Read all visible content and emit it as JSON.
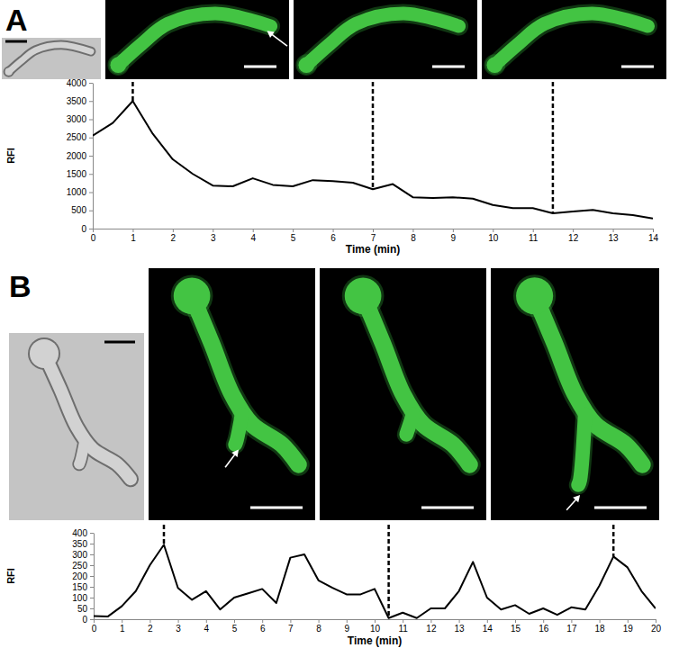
{
  "chart_data": [
    {
      "type": "line",
      "title": "A",
      "x_label": "Time (min)",
      "y_label": "RFI",
      "color": "#000000",
      "x": [
        0,
        0.5,
        1,
        1.5,
        2,
        2.5,
        3,
        3.5,
        4,
        4.5,
        5,
        5.5,
        6,
        6.5,
        7,
        7.5,
        8,
        8.5,
        9,
        9.5,
        10,
        10.5,
        11,
        11.5,
        12,
        12.5,
        13,
        13.5,
        14
      ],
      "values": [
        2550,
        2900,
        3500,
        2600,
        1900,
        1500,
        1180,
        1160,
        1380,
        1200,
        1160,
        1330,
        1300,
        1260,
        1080,
        1220,
        860,
        840,
        860,
        820,
        650,
        560,
        560,
        420,
        470,
        510,
        420,
        370,
        280
      ],
      "xlim": [
        0,
        14
      ],
      "xticks": [
        0,
        1,
        2,
        3,
        4,
        5,
        6,
        7,
        8,
        9,
        10,
        11,
        12,
        13,
        14
      ],
      "ylim": [
        0,
        4000
      ],
      "yticks": [
        0,
        500,
        1000,
        1500,
        2000,
        2500,
        3000,
        3500,
        4000
      ],
      "vlines": [
        1,
        7,
        11.5
      ],
      "grid": false
    },
    {
      "type": "line",
      "title": "B",
      "x_label": "Time (min)",
      "y_label": "RFI",
      "color": "#000000",
      "x": [
        0,
        0.5,
        1,
        1.5,
        2,
        2.5,
        3,
        3.5,
        4,
        4.5,
        5,
        5.5,
        6,
        6.5,
        7,
        7.5,
        8,
        8.5,
        9,
        9.5,
        10,
        10.5,
        11,
        11.5,
        12,
        12.5,
        13,
        13.5,
        14,
        14.5,
        15,
        15.5,
        16,
        16.5,
        17,
        17.5,
        18,
        18.5,
        19,
        19.5,
        20
      ],
      "values": [
        15,
        12,
        60,
        130,
        250,
        345,
        145,
        90,
        130,
        45,
        100,
        120,
        140,
        75,
        285,
        300,
        180,
        145,
        115,
        115,
        140,
        5,
        30,
        5,
        50,
        50,
        130,
        265,
        100,
        45,
        65,
        25,
        50,
        20,
        55,
        45,
        155,
        290,
        240,
        130,
        50
      ],
      "xlim": [
        0,
        20
      ],
      "xticks": [
        0,
        1,
        2,
        3,
        4,
        5,
        6,
        7,
        8,
        9,
        10,
        11,
        12,
        13,
        14,
        15,
        16,
        17,
        18,
        19,
        20
      ],
      "ylim": [
        0,
        400
      ],
      "yticks": [
        0,
        50,
        100,
        150,
        200,
        250,
        300,
        350,
        400
      ],
      "vlines": [
        2.5,
        10.5,
        18.5
      ],
      "grid": false
    }
  ]
}
